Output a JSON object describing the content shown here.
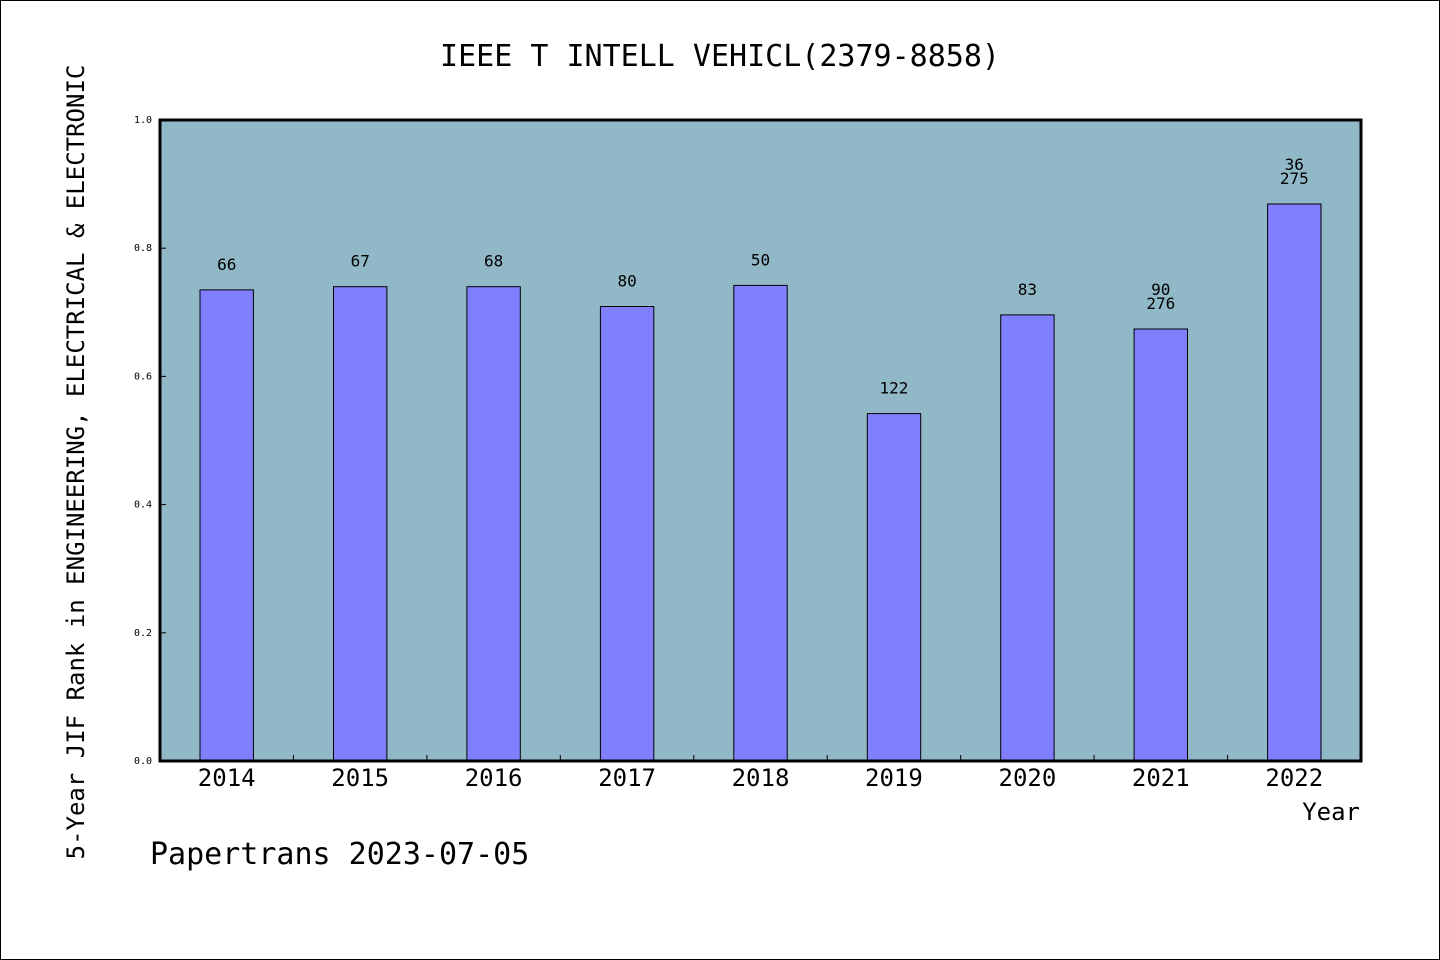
{
  "chart_data": {
    "type": "bar",
    "title": "IEEE T INTELL VEHICL(2379-8858)",
    "xlabel": "Year",
    "ylabel": "5-Year JIF Rank in ENGINEERING, ELECTRICAL & ELECTRONIC",
    "categories": [
      "2014",
      "2015",
      "2016",
      "2017",
      "2018",
      "2019",
      "2020",
      "2021",
      "2022"
    ],
    "values": [
      0.735,
      0.74,
      0.74,
      0.709,
      0.742,
      0.542,
      0.696,
      0.674,
      0.869
    ],
    "bar_labels": [
      [
        "66"
      ],
      [
        "67"
      ],
      [
        "68"
      ],
      [
        "80"
      ],
      [
        "50"
      ],
      [
        "122"
      ],
      [
        "83"
      ],
      [
        "90",
        "276"
      ],
      [
        "36",
        "275"
      ]
    ],
    "ylim": [
      0,
      1.0
    ],
    "yticks": [
      "0.0",
      "0.2",
      "0.4",
      "0.6",
      "0.8",
      "1.0"
    ],
    "grid": false,
    "colors": {
      "plot_background": "#91b8c7",
      "bar_fill": "#8080ff",
      "bar_stroke": "#000000"
    },
    "footer": "Papertrans 2023-07-05"
  }
}
